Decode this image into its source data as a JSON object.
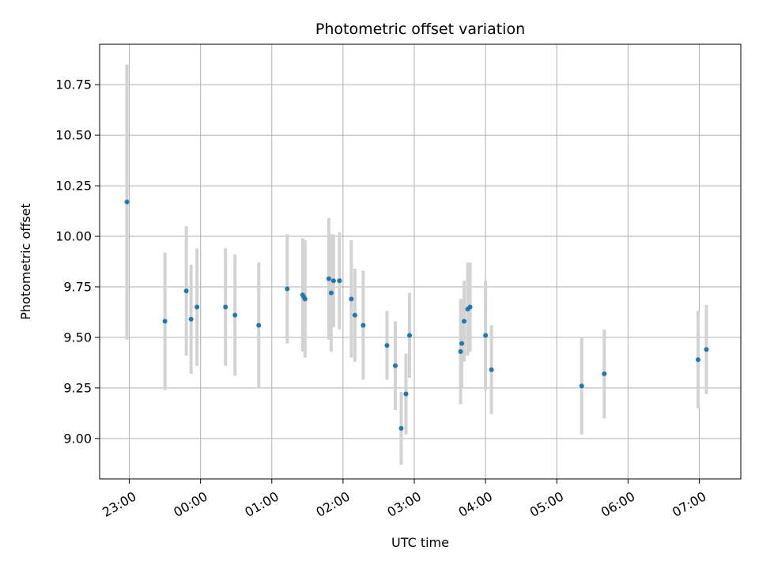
{
  "chart_data": {
    "type": "scatter",
    "title": "Photometric offset variation",
    "xlabel": "UTC time",
    "ylabel": "Photometric offset",
    "x_unit": "time of day (UTC), hours continuing past midnight",
    "x_ticks": [
      "23:00",
      "00:00",
      "01:00",
      "02:00",
      "03:00",
      "04:00",
      "05:00",
      "06:00",
      "07:00"
    ],
    "x_tick_values": [
      "23:00",
      "24:00",
      "25:00",
      "26:00",
      "27:00",
      "28:00",
      "29:00",
      "30:00",
      "31:00"
    ],
    "xlim": [
      "22:35",
      "31:35"
    ],
    "y_ticks": [
      "9.00",
      "9.25",
      "9.50",
      "9.75",
      "10.00",
      "10.25",
      "10.50",
      "10.75"
    ],
    "ylim": [
      8.8,
      10.95
    ],
    "grid": true,
    "marker_color": "#1f77b4",
    "errorbar_color": "#d3d3d3",
    "points": [
      {
        "t": "22:58",
        "y": 10.17,
        "err": 0.68
      },
      {
        "t": "23:30",
        "y": 9.58,
        "err": 0.34
      },
      {
        "t": "23:48",
        "y": 9.73,
        "err": 0.32
      },
      {
        "t": "23:52",
        "y": 9.59,
        "err": 0.27
      },
      {
        "t": "23:57",
        "y": 9.65,
        "err": 0.29
      },
      {
        "t": "24:21",
        "y": 9.65,
        "err": 0.29
      },
      {
        "t": "24:29",
        "y": 9.61,
        "err": 0.3
      },
      {
        "t": "24:49",
        "y": 9.56,
        "err": 0.31
      },
      {
        "t": "25:13",
        "y": 9.74,
        "err": 0.27
      },
      {
        "t": "25:26",
        "y": 9.71,
        "err": 0.28
      },
      {
        "t": "25:27",
        "y": 9.7,
        "err": 0.27
      },
      {
        "t": "25:28",
        "y": 9.69,
        "err": 0.29
      },
      {
        "t": "25:48",
        "y": 9.79,
        "err": 0.3
      },
      {
        "t": "25:50",
        "y": 9.72,
        "err": 0.29
      },
      {
        "t": "25:52",
        "y": 9.78,
        "err": 0.23
      },
      {
        "t": "25:57",
        "y": 9.78,
        "err": 0.24
      },
      {
        "t": "26:07",
        "y": 9.69,
        "err": 0.29
      },
      {
        "t": "26:10",
        "y": 9.61,
        "err": 0.23
      },
      {
        "t": "26:17",
        "y": 9.56,
        "err": 0.27
      },
      {
        "t": "26:37",
        "y": 9.46,
        "err": 0.17
      },
      {
        "t": "26:44",
        "y": 9.36,
        "err": 0.22
      },
      {
        "t": "26:49",
        "y": 9.05,
        "err": 0.18
      },
      {
        "t": "26:53",
        "y": 9.22,
        "err": 0.2
      },
      {
        "t": "26:56",
        "y": 9.51,
        "err": 0.21
      },
      {
        "t": "27:39",
        "y": 9.43,
        "err": 0.26
      },
      {
        "t": "27:40",
        "y": 9.47,
        "err": 0.22
      },
      {
        "t": "27:42",
        "y": 9.58,
        "err": 0.2
      },
      {
        "t": "27:45",
        "y": 9.64,
        "err": 0.23
      },
      {
        "t": "27:47",
        "y": 9.65,
        "err": 0.22
      },
      {
        "t": "28:00",
        "y": 9.51,
        "err": 0.27
      },
      {
        "t": "28:05",
        "y": 9.34,
        "err": 0.22
      },
      {
        "t": "29:21",
        "y": 9.26,
        "err": 0.24
      },
      {
        "t": "29:40",
        "y": 9.32,
        "err": 0.22
      },
      {
        "t": "30:59",
        "y": 9.39,
        "err": 0.24
      },
      {
        "t": "31:06",
        "y": 9.44,
        "err": 0.22
      }
    ]
  }
}
